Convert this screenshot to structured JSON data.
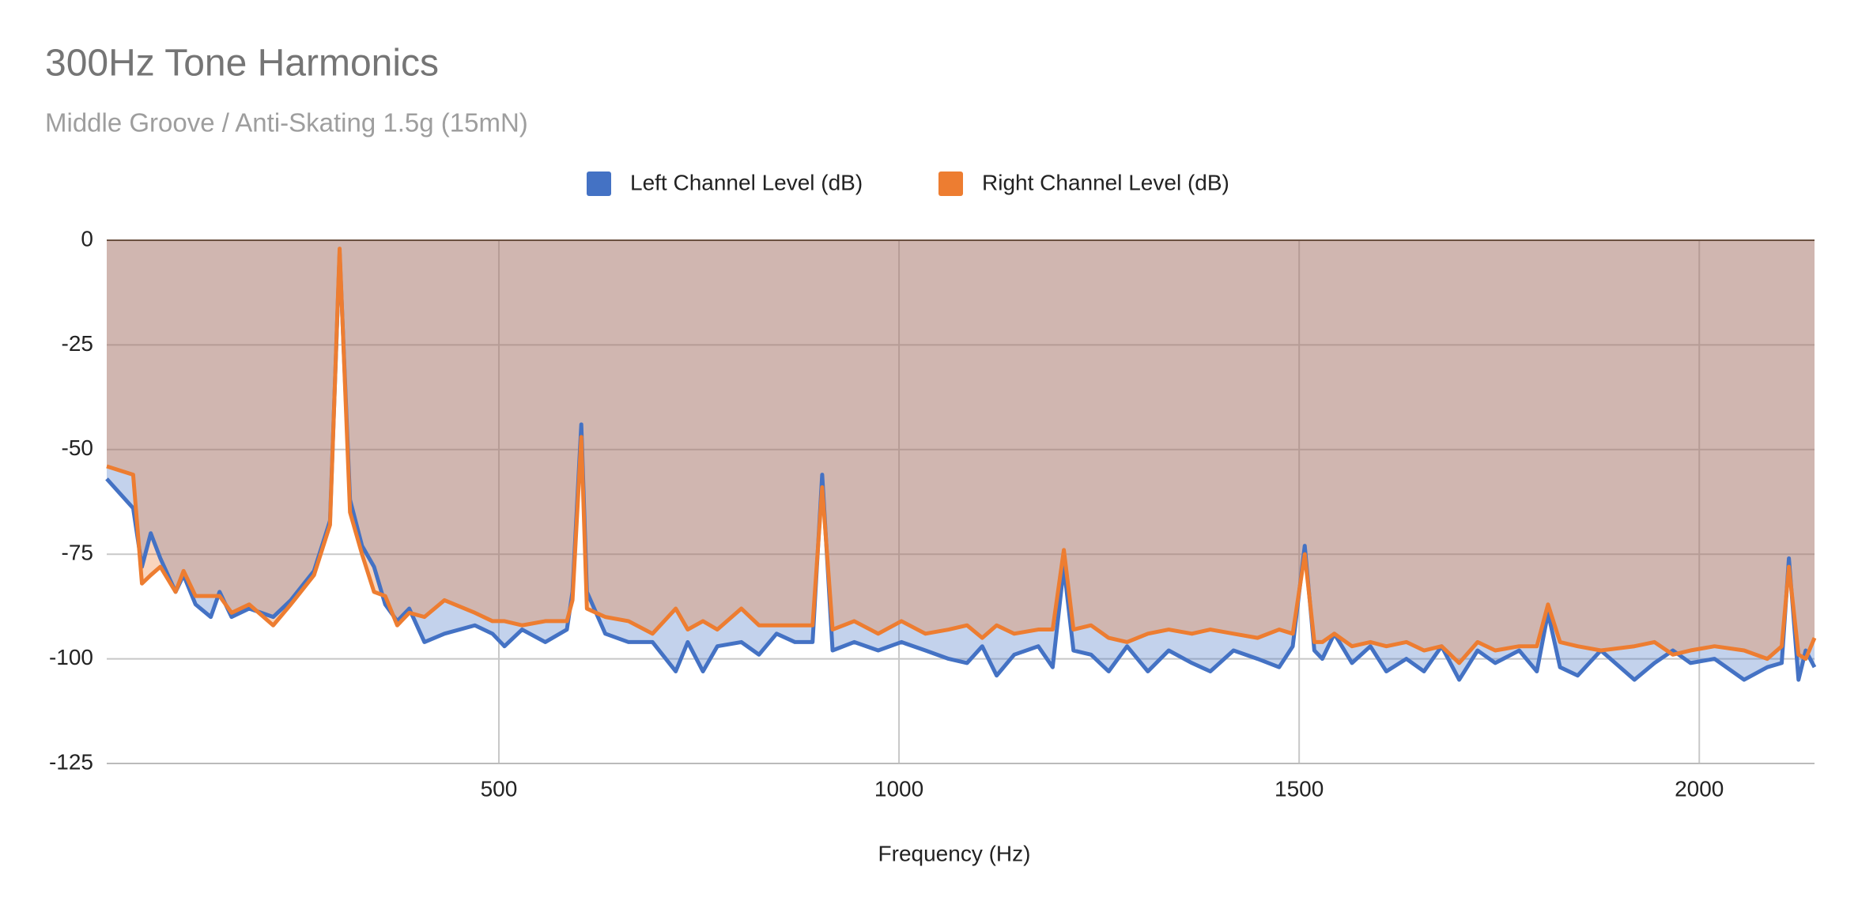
{
  "chart_data": {
    "type": "area",
    "title": "300Hz Tone Harmonics",
    "subtitle": "Middle Groove / Anti-Skating 1.5g (15mN)",
    "x_label": "Frequency (Hz)",
    "xlim": [
      10,
      2144
    ],
    "xticks": [
      500,
      1000,
      1500,
      2000
    ],
    "ylim": [
      -125,
      0
    ],
    "yticks": [
      0,
      -25,
      -50,
      -75,
      -100,
      -125
    ],
    "grid": true,
    "legend": "top",
    "x": [
      10,
      43,
      54,
      65,
      77,
      96,
      106,
      121,
      140,
      151,
      166,
      188,
      218,
      240,
      269,
      289,
      301,
      314,
      329,
      344,
      358,
      373,
      388,
      407,
      432,
      470,
      492,
      507,
      529,
      558,
      585,
      592,
      603,
      610,
      633,
      662,
      692,
      721,
      736,
      755,
      773,
      803,
      825,
      847,
      870,
      892,
      904,
      917,
      944,
      974,
      1003,
      1033,
      1062,
      1085,
      1104,
      1122,
      1144,
      1174,
      1192,
      1206,
      1218,
      1240,
      1262,
      1285,
      1311,
      1337,
      1366,
      1389,
      1418,
      1448,
      1475,
      1492,
      1507,
      1519,
      1529,
      1544,
      1566,
      1589,
      1609,
      1634,
      1656,
      1678,
      1700,
      1723,
      1745,
      1775,
      1797,
      1811,
      1826,
      1848,
      1877,
      1919,
      1944,
      1967,
      1989,
      2019,
      2056,
      2085,
      2103,
      2112,
      2124,
      2133,
      2144
    ],
    "series": [
      {
        "name": "Left Channel Level (dB)",
        "color": "#4472c4",
        "values": [
          -57,
          -64,
          -78,
          -70,
          -76,
          -84,
          -80,
          -87,
          -90,
          -84,
          -90,
          -88,
          -90,
          -86,
          -79,
          -67,
          -3,
          -62,
          -73,
          -78,
          -87,
          -91,
          -88,
          -96,
          -94,
          -92,
          -94,
          -97,
          -93,
          -96,
          -93,
          -84,
          -44,
          -84,
          -94,
          -96,
          -96,
          -103,
          -96,
          -103,
          -97,
          -96,
          -99,
          -94,
          -96,
          -96,
          -56,
          -98,
          -96,
          -98,
          -96,
          -98,
          -100,
          -101,
          -97,
          -104,
          -99,
          -97,
          -102,
          -78,
          -98,
          -99,
          -103,
          -97,
          -103,
          -98,
          -101,
          -103,
          -98,
          -100,
          -102,
          -97,
          -73,
          -98,
          -100,
          -94,
          -101,
          -97,
          -103,
          -100,
          -103,
          -97,
          -105,
          -98,
          -101,
          -98,
          -103,
          -89,
          -102,
          -104,
          -98,
          -105,
          -101,
          -98,
          -101,
          -100,
          -105,
          -102,
          -101,
          -76,
          -105,
          -98,
          -102
        ]
      },
      {
        "name": "Right Channel Level (dB)",
        "color": "#ed7d31",
        "values": [
          -54,
          -56,
          -82,
          -80,
          -78,
          -84,
          -79,
          -85,
          -85,
          -85,
          -89,
          -87,
          -92,
          -87,
          -80,
          -68,
          -2,
          -65,
          -75,
          -84,
          -85,
          -92,
          -89,
          -90,
          -86,
          -89,
          -91,
          -91,
          -92,
          -91,
          -91,
          -86,
          -47,
          -88,
          -90,
          -91,
          -94,
          -88,
          -93,
          -91,
          -93,
          -88,
          -92,
          -92,
          -92,
          -92,
          -59,
          -93,
          -91,
          -94,
          -91,
          -94,
          -93,
          -92,
          -95,
          -92,
          -94,
          -93,
          -93,
          -74,
          -93,
          -92,
          -95,
          -96,
          -94,
          -93,
          -94,
          -93,
          -94,
          -95,
          -93,
          -94,
          -75,
          -96,
          -96,
          -94,
          -97,
          -96,
          -97,
          -96,
          -98,
          -97,
          -101,
          -96,
          -98,
          -97,
          -97,
          -87,
          -96,
          -97,
          -98,
          -97,
          -96,
          -99,
          -98,
          -97,
          -98,
          -100,
          -97,
          -78,
          -99,
          -100,
          -95
        ]
      }
    ]
  }
}
